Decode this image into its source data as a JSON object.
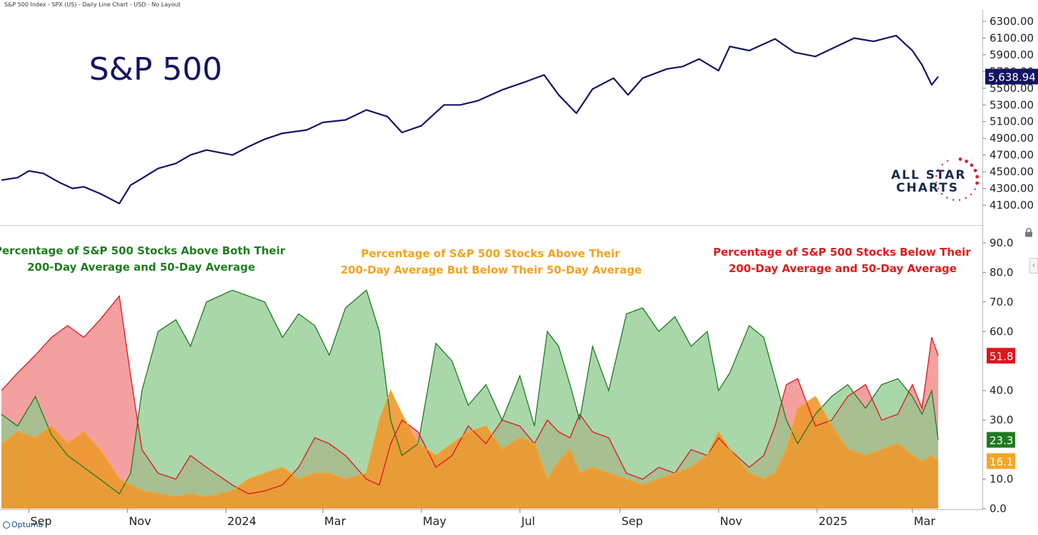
{
  "header": {
    "subtitle": "S&P 500 Index - SPX (US) - Daily Line Chart - USD - No Layout"
  },
  "footer": {
    "brand": "Optuma"
  },
  "watermark": {
    "line1": "ALL STAR",
    "line2": "CHARTS"
  },
  "colors": {
    "price_line": "#141464",
    "green_fill": "#8cc98c",
    "green_line": "#1f7a1f",
    "red_fill": "#f28080",
    "red_line": "#e0141e",
    "orange_fill": "#f0982e",
    "orange_line": "#f5a623",
    "last_price_bg": "#141464"
  },
  "chart_data": [
    {
      "type": "line",
      "title": "S&P 500",
      "ylim": [
        3900,
        6500
      ],
      "y_ticks": [
        "6300.00",
        "6100.00",
        "5900.00",
        "5700.00",
        "5500.00",
        "5300.00",
        "5100.00",
        "4900.00",
        "4700.00",
        "4500.00",
        "4300.00",
        "4100.00"
      ],
      "y_tick_values": [
        6300,
        6100,
        5900,
        5700,
        5500,
        5300,
        5100,
        4900,
        4700,
        4500,
        4300,
        4100
      ],
      "last_value_label": "5,638.94",
      "series": [
        {
          "x": [
            "2023-08-15",
            "2023-08-25",
            "2023-09-01",
            "2023-09-10",
            "2023-09-20",
            "2023-09-28",
            "2023-10-05",
            "2023-10-15",
            "2023-10-27",
            "2023-11-03",
            "2023-11-10",
            "2023-11-20",
            "2023-12-01",
            "2023-12-10",
            "2023-12-20",
            "2024-01-05",
            "2024-01-15",
            "2024-01-25",
            "2024-02-05",
            "2024-02-20",
            "2024-03-01",
            "2024-03-15",
            "2024-03-28",
            "2024-04-10",
            "2024-04-19",
            "2024-05-01",
            "2024-05-15",
            "2024-05-25",
            "2024-06-05",
            "2024-06-20",
            "2024-07-05",
            "2024-07-16",
            "2024-07-25",
            "2024-08-05",
            "2024-08-15",
            "2024-08-28",
            "2024-09-06",
            "2024-09-15",
            "2024-09-30",
            "2024-10-10",
            "2024-10-20",
            "2024-11-01",
            "2024-11-08",
            "2024-11-20",
            "2024-12-06",
            "2024-12-18",
            "2024-12-31",
            "2025-01-13",
            "2025-01-24",
            "2025-02-05",
            "2025-02-19",
            "2025-03-01",
            "2025-03-07",
            "2025-03-13",
            "2025-03-17"
          ],
          "y": [
            4400,
            4430,
            4510,
            4480,
            4370,
            4300,
            4320,
            4240,
            4120,
            4340,
            4420,
            4540,
            4600,
            4700,
            4760,
            4700,
            4800,
            4890,
            4960,
            5000,
            5090,
            5120,
            5240,
            5160,
            4970,
            5050,
            5300,
            5300,
            5350,
            5480,
            5580,
            5660,
            5420,
            5200,
            5490,
            5620,
            5420,
            5620,
            5730,
            5760,
            5850,
            5710,
            6000,
            5950,
            6090,
            5930,
            5880,
            6000,
            6100,
            6060,
            6130,
            5950,
            5780,
            5540,
            5638.94
          ]
        }
      ]
    },
    {
      "type": "area",
      "ylim": [
        0,
        95
      ],
      "y_ticks": [
        "90.0",
        "80.0",
        "70.0",
        "60.0",
        "40.0",
        "30.0",
        "10.0",
        "0.0"
      ],
      "y_tick_values": [
        90,
        80,
        70,
        60,
        40,
        30,
        10,
        0
      ],
      "annotations": [
        "Percentage of S&P 500 Stocks Above Both Their",
        "200-Day Average and 50-Day Average",
        "Percentage of S&P 500 Stocks Above Their",
        "200-Day Average But Below Their 50-Day Average",
        "Percentage of S&P 500 Stocks Below Their",
        "200-Day Average and 50-Day Average"
      ],
      "x_ticks": [
        "Sep",
        "Nov",
        "2024",
        "Mar",
        "May",
        "Jul",
        "Sep",
        "Nov",
        "2025",
        "Mar"
      ],
      "x_tick_dates": [
        "2023-09-01",
        "2023-11-01",
        "2024-01-01",
        "2024-03-01",
        "2024-05-01",
        "2024-07-01",
        "2024-09-01",
        "2024-11-01",
        "2025-01-01",
        "2025-03-01"
      ],
      "series": [
        {
          "name": "Above Both 200-Day and 50-Day Average",
          "x": [
            "2023-08-15",
            "2023-08-25",
            "2023-09-05",
            "2023-09-15",
            "2023-09-25",
            "2023-10-05",
            "2023-10-15",
            "2023-10-27",
            "2023-11-03",
            "2023-11-10",
            "2023-11-20",
            "2023-12-01",
            "2023-12-10",
            "2023-12-20",
            "2024-01-05",
            "2024-01-15",
            "2024-01-25",
            "2024-02-05",
            "2024-02-15",
            "2024-02-25",
            "2024-03-05",
            "2024-03-15",
            "2024-03-28",
            "2024-04-05",
            "2024-04-12",
            "2024-04-19",
            "2024-04-29",
            "2024-05-10",
            "2024-05-20",
            "2024-05-30",
            "2024-06-10",
            "2024-06-20",
            "2024-07-01",
            "2024-07-10",
            "2024-07-18",
            "2024-07-25",
            "2024-08-01",
            "2024-08-07",
            "2024-08-15",
            "2024-08-25",
            "2024-09-05",
            "2024-09-15",
            "2024-09-25",
            "2024-10-05",
            "2024-10-15",
            "2024-10-25",
            "2024-11-01",
            "2024-11-08",
            "2024-11-20",
            "2024-11-29",
            "2024-12-06",
            "2024-12-13",
            "2024-12-20",
            "2024-12-31",
            "2025-01-10",
            "2025-01-20",
            "2025-01-31",
            "2025-02-10",
            "2025-02-20",
            "2025-03-01",
            "2025-03-07",
            "2025-03-13",
            "2025-03-17"
          ],
          "y": [
            32,
            28,
            38,
            25,
            18,
            14,
            10,
            5,
            12,
            40,
            60,
            64,
            55,
            70,
            74,
            72,
            70,
            58,
            66,
            62,
            52,
            68,
            74,
            60,
            30,
            18,
            22,
            56,
            50,
            35,
            42,
            30,
            45,
            28,
            60,
            55,
            42,
            30,
            55,
            40,
            66,
            68,
            60,
            65,
            55,
            60,
            40,
            46,
            62,
            58,
            44,
            30,
            22,
            32,
            38,
            42,
            34,
            42,
            44,
            38,
            32,
            40,
            23.3
          ]
        },
        {
          "name": "Above 200-Day But Below 50-Day Average",
          "x": [
            "2023-08-15",
            "2023-08-25",
            "2023-09-05",
            "2023-09-15",
            "2023-09-25",
            "2023-10-05",
            "2023-10-15",
            "2023-10-27",
            "2023-11-03",
            "2023-11-10",
            "2023-11-20",
            "2023-12-01",
            "2023-12-10",
            "2023-12-20",
            "2024-01-05",
            "2024-01-15",
            "2024-01-25",
            "2024-02-05",
            "2024-02-15",
            "2024-02-25",
            "2024-03-05",
            "2024-03-15",
            "2024-03-28",
            "2024-04-05",
            "2024-04-12",
            "2024-04-19",
            "2024-04-29",
            "2024-05-10",
            "2024-05-20",
            "2024-05-30",
            "2024-06-10",
            "2024-06-20",
            "2024-07-01",
            "2024-07-10",
            "2024-07-18",
            "2024-07-25",
            "2024-08-01",
            "2024-08-07",
            "2024-08-15",
            "2024-08-25",
            "2024-09-05",
            "2024-09-15",
            "2024-09-25",
            "2024-10-05",
            "2024-10-15",
            "2024-10-25",
            "2024-11-01",
            "2024-11-08",
            "2024-11-20",
            "2024-11-29",
            "2024-12-06",
            "2024-12-13",
            "2024-12-20",
            "2024-12-31",
            "2025-01-10",
            "2025-01-20",
            "2025-01-31",
            "2025-02-10",
            "2025-02-20",
            "2025-03-01",
            "2025-03-07",
            "2025-03-13",
            "2025-03-17"
          ],
          "y": [
            22,
            26,
            24,
            28,
            22,
            26,
            20,
            10,
            8,
            6,
            5,
            4,
            5,
            4,
            6,
            10,
            12,
            14,
            10,
            12,
            12,
            10,
            12,
            30,
            40,
            32,
            22,
            18,
            22,
            26,
            28,
            20,
            24,
            22,
            10,
            16,
            20,
            12,
            14,
            12,
            10,
            8,
            10,
            12,
            14,
            18,
            26,
            20,
            12,
            10,
            12,
            20,
            34,
            38,
            28,
            20,
            18,
            20,
            22,
            18,
            16,
            18,
            16.1
          ]
        },
        {
          "name": "Below 200-Day and 50-Day Average",
          "x": [
            "2023-08-15",
            "2023-08-25",
            "2023-09-05",
            "2023-09-15",
            "2023-09-25",
            "2023-10-05",
            "2023-10-15",
            "2023-10-27",
            "2023-11-03",
            "2023-11-10",
            "2023-11-20",
            "2023-12-01",
            "2023-12-10",
            "2023-12-20",
            "2024-01-05",
            "2024-01-15",
            "2024-01-25",
            "2024-02-05",
            "2024-02-15",
            "2024-02-25",
            "2024-03-05",
            "2024-03-15",
            "2024-03-28",
            "2024-04-05",
            "2024-04-12",
            "2024-04-19",
            "2024-04-29",
            "2024-05-10",
            "2024-05-20",
            "2024-05-30",
            "2024-06-10",
            "2024-06-20",
            "2024-07-01",
            "2024-07-10",
            "2024-07-18",
            "2024-07-25",
            "2024-08-01",
            "2024-08-07",
            "2024-08-15",
            "2024-08-25",
            "2024-09-05",
            "2024-09-15",
            "2024-09-25",
            "2024-10-05",
            "2024-10-15",
            "2024-10-25",
            "2024-11-01",
            "2024-11-08",
            "2024-11-20",
            "2024-11-29",
            "2024-12-06",
            "2024-12-13",
            "2024-12-20",
            "2024-12-31",
            "2025-01-10",
            "2025-01-20",
            "2025-01-31",
            "2025-02-10",
            "2025-02-20",
            "2025-03-01",
            "2025-03-07",
            "2025-03-13",
            "2025-03-17"
          ],
          "y": [
            40,
            46,
            52,
            58,
            62,
            58,
            64,
            72,
            45,
            20,
            12,
            10,
            18,
            14,
            8,
            5,
            6,
            8,
            14,
            24,
            22,
            18,
            10,
            8,
            22,
            30,
            26,
            14,
            18,
            28,
            22,
            30,
            28,
            22,
            30,
            26,
            24,
            32,
            26,
            24,
            12,
            10,
            14,
            12,
            20,
            18,
            24,
            20,
            14,
            18,
            28,
            42,
            44,
            28,
            30,
            38,
            42,
            30,
            32,
            42,
            34,
            58,
            51.8
          ]
        }
      ],
      "last_value_labels": [
        "51.8",
        "23.3",
        "16.1"
      ]
    }
  ]
}
